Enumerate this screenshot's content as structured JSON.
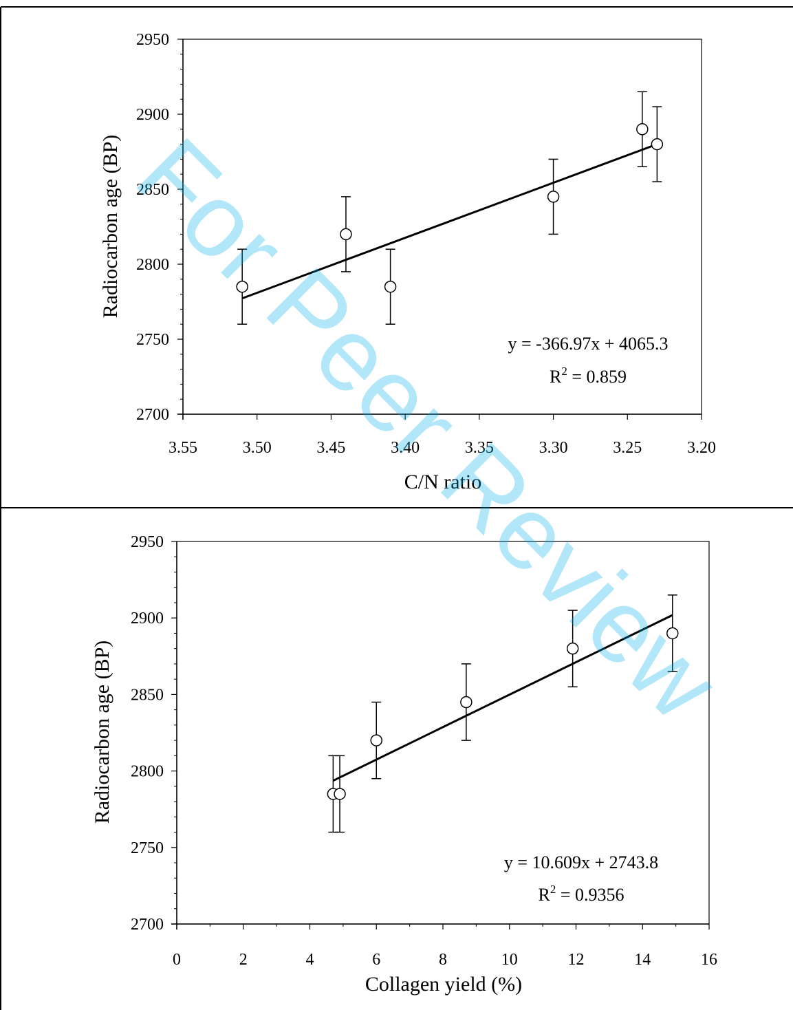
{
  "watermark": "For Peer Review",
  "chart_data": [
    {
      "type": "scatter",
      "xlabel": "C/N ratio",
      "ylabel": "Radiocarbon age (BP)",
      "xlim": [
        3.55,
        3.2
      ],
      "ylim": [
        2700,
        2950
      ],
      "x_reversed": true,
      "xticks": [
        "3.55",
        "3.50",
        "3.45",
        "3.40",
        "3.35",
        "3.30",
        "3.25",
        "3.20"
      ],
      "yticks": [
        "2700",
        "2750",
        "2800",
        "2850",
        "2900",
        "2950"
      ],
      "points": [
        {
          "x": 3.51,
          "y": 2785,
          "err": 25
        },
        {
          "x": 3.44,
          "y": 2820,
          "err": 25
        },
        {
          "x": 3.41,
          "y": 2785,
          "err": 25
        },
        {
          "x": 3.3,
          "y": 2845,
          "err": 25
        },
        {
          "x": 3.24,
          "y": 2890,
          "err": 25
        },
        {
          "x": 3.23,
          "y": 2880,
          "err": 25
        }
      ],
      "trendline": {
        "slope": -366.97,
        "intercept": 4065.3,
        "x_range": [
          3.51,
          3.23
        ]
      },
      "equation": "y = -366.97x + 4065.3",
      "r2_label": "R",
      "r2_sup": "2",
      "r2_value": " = 0.859"
    },
    {
      "type": "scatter",
      "xlabel": "Collagen  yield (%)",
      "ylabel": "Radiocarbon age (BP)",
      "xlim": [
        0,
        16
      ],
      "ylim": [
        2700,
        2950
      ],
      "xticks": [
        "0",
        "2",
        "4",
        "6",
        "8",
        "10",
        "12",
        "14",
        "16"
      ],
      "yticks": [
        "2700",
        "2750",
        "2800",
        "2850",
        "2900",
        "2950"
      ],
      "points": [
        {
          "x": 4.7,
          "y": 2785,
          "err": 25
        },
        {
          "x": 4.9,
          "y": 2785,
          "err": 25
        },
        {
          "x": 6.0,
          "y": 2820,
          "err": 25
        },
        {
          "x": 8.7,
          "y": 2845,
          "err": 25
        },
        {
          "x": 11.9,
          "y": 2880,
          "err": 25
        },
        {
          "x": 14.9,
          "y": 2890,
          "err": 25
        }
      ],
      "trendline": {
        "slope": 10.609,
        "intercept": 2743.8,
        "x_range": [
          4.7,
          14.9
        ]
      },
      "equation": "y = 10.609x + 2743.8",
      "r2_label": "R",
      "r2_sup": "2",
      "r2_value": " = 0.9356"
    }
  ]
}
